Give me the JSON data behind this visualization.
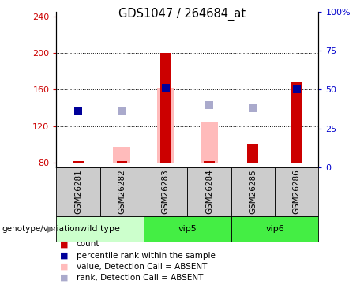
{
  "title": "GDS1047 / 264684_at",
  "samples": [
    "GSM26281",
    "GSM26282",
    "GSM26283",
    "GSM26284",
    "GSM26285",
    "GSM26286"
  ],
  "ylim_left": [
    75,
    245
  ],
  "ylim_right": [
    0,
    100
  ],
  "yticks_left": [
    80,
    120,
    160,
    200,
    240
  ],
  "yticks_right": [
    0,
    25,
    50,
    75,
    100
  ],
  "ytick_labels_right": [
    "0",
    "25",
    "50",
    "75",
    "100%"
  ],
  "bar_baseline": 80,
  "red_bars": {
    "GSM26281": 82,
    "GSM26282": 80,
    "GSM26283": 200,
    "GSM26284": 80,
    "GSM26285": 100,
    "GSM26286": 168
  },
  "pink_bars": {
    "GSM26282": 97,
    "GSM26283": 162,
    "GSM26284": 125,
    "GSM26285": 80
  },
  "blue_squares": {
    "GSM26281": 136,
    "GSM26283": 162,
    "GSM26286": 160
  },
  "light_blue_squares": {
    "GSM26282": 136,
    "GSM26284": 143,
    "GSM26285": 140
  },
  "group_positions": {
    "wild type": [
      0,
      2
    ],
    "vip5": [
      2,
      4
    ],
    "vip6": [
      4,
      6
    ]
  },
  "colors": {
    "red_bar": "#cc0000",
    "pink_bar": "#ffbbbb",
    "blue_sq": "#000099",
    "light_blue_sq": "#aaaacc",
    "axis_left_color": "#cc0000",
    "axis_right_color": "#0000cc",
    "plot_bg": "white",
    "sample_bg": "#cccccc",
    "group_bg_wt": "#ccffcc",
    "group_bg_vip": "#44ee44"
  },
  "legend_items": [
    {
      "label": "count",
      "color": "#cc0000"
    },
    {
      "label": "percentile rank within the sample",
      "color": "#000099"
    },
    {
      "label": "value, Detection Call = ABSENT",
      "color": "#ffbbbb"
    },
    {
      "label": "rank, Detection Call = ABSENT",
      "color": "#aaaacc"
    }
  ]
}
